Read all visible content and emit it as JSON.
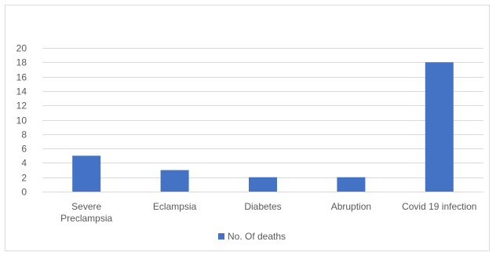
{
  "chart_data": {
    "type": "bar",
    "categories": [
      "Severe Preclampsia",
      "Eclampsia",
      "Diabetes",
      "Abruption",
      "Covid 19 infection"
    ],
    "category_lines": [
      [
        "Severe",
        "Preclampsia"
      ],
      [
        "Eclampsia"
      ],
      [
        "Diabetes"
      ],
      [
        "Abruption"
      ],
      [
        "Covid 19 infection"
      ]
    ],
    "series": [
      {
        "name": "No. Of deaths",
        "values": [
          5,
          3,
          2,
          2,
          18
        ],
        "color": "#4472c4"
      }
    ],
    "title": "",
    "xlabel": "",
    "ylabel": "",
    "ylim": [
      0,
      20
    ],
    "yticks": [
      0,
      2,
      4,
      6,
      8,
      10,
      12,
      14,
      16,
      18,
      20
    ],
    "grid": true,
    "legend_position": "bottom",
    "gridline_color": "#d9d9d9",
    "text_color": "#595959"
  }
}
